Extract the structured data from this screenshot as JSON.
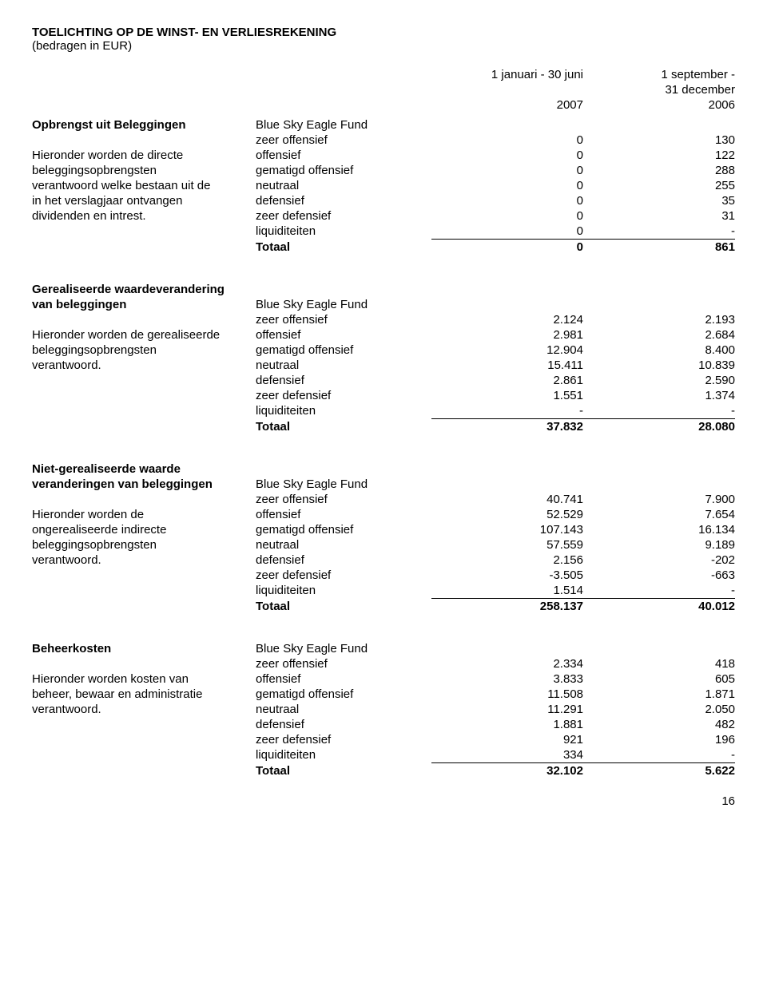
{
  "page": {
    "title": "TOELICHTING OP DE WINST- EN VERLIESREKENING",
    "subtitle": "(bedragen in EUR)",
    "col1_header_a": "1 januari - 30 juni",
    "col1_header_b": "2007",
    "col2_header_a": "1 september -",
    "col2_header_b": "31 december",
    "col2_header_c": "2006",
    "fund_name": "Blue Sky Eagle Fund",
    "total_label": "Totaal",
    "page_number": "16"
  },
  "rows": {
    "zeer_offensief": "zeer offensief",
    "offensief": "offensief",
    "gematigd_offensief": "gematigd offensief",
    "neutraal": "neutraal",
    "defensief": "defensief",
    "zeer_defensief": "zeer defensief",
    "liquiditeiten": "liquiditeiten"
  },
  "s1": {
    "heading": "Opbrengst uit  Beleggingen",
    "desc1": "Hieronder worden de directe",
    "desc2": "beleggingsopbrengsten",
    "desc3": "verantwoord welke bestaan uit de",
    "desc4": "in het verslagjaar ontvangen",
    "desc5": "dividenden en intrest.",
    "v": {
      "zo": [
        "0",
        "130"
      ],
      "of": [
        "0",
        "122"
      ],
      "go": [
        "0",
        "288"
      ],
      "ne": [
        "0",
        "255"
      ],
      "de": [
        "0",
        "35"
      ],
      "zd": [
        "0",
        "31"
      ],
      "lq": [
        "0",
        "-"
      ],
      "tot": [
        "0",
        "861"
      ]
    }
  },
  "s2": {
    "heading1": "Gerealiseerde waardeverandering",
    "heading2": "van beleggingen",
    "desc1": "Hieronder worden de gerealiseerde",
    "desc2": "beleggingsopbrengsten",
    "desc3": "verantwoord.",
    "v": {
      "zo": [
        "2.124",
        "2.193"
      ],
      "of": [
        "2.981",
        "2.684"
      ],
      "go": [
        "12.904",
        "8.400"
      ],
      "ne": [
        "15.411",
        "10.839"
      ],
      "de": [
        "2.861",
        "2.590"
      ],
      "zd": [
        "1.551",
        "1.374"
      ],
      "lq": [
        "-",
        "-"
      ],
      "tot": [
        "37.832",
        "28.080"
      ]
    }
  },
  "s3": {
    "heading1": "Niet-gerealiseerde waarde",
    "heading2": "veranderingen van beleggingen",
    "desc1": "Hieronder worden de",
    "desc2": "ongerealiseerde indirecte",
    "desc3": "beleggingsopbrengsten",
    "desc4": "verantwoord.",
    "v": {
      "zo": [
        "40.741",
        "7.900"
      ],
      "of": [
        "52.529",
        "7.654"
      ],
      "go": [
        "107.143",
        "16.134"
      ],
      "ne": [
        "57.559",
        "9.189"
      ],
      "de": [
        "2.156",
        "-202"
      ],
      "zd": [
        "-3.505",
        "-663"
      ],
      "lq": [
        "1.514",
        "-"
      ],
      "tot": [
        "258.137",
        "40.012"
      ]
    }
  },
  "s4": {
    "heading": "Beheerkosten",
    "desc1": "Hieronder worden kosten van",
    "desc2": "beheer, bewaar en administratie",
    "desc3": "verantwoord.",
    "v": {
      "zo": [
        "2.334",
        "418"
      ],
      "of": [
        "3.833",
        "605"
      ],
      "go": [
        "11.508",
        "1.871"
      ],
      "ne": [
        "11.291",
        "2.050"
      ],
      "de": [
        "1.881",
        "482"
      ],
      "zd": [
        "921",
        "196"
      ],
      "lq": [
        "334",
        "-"
      ],
      "tot": [
        "32.102",
        "5.622"
      ]
    }
  }
}
